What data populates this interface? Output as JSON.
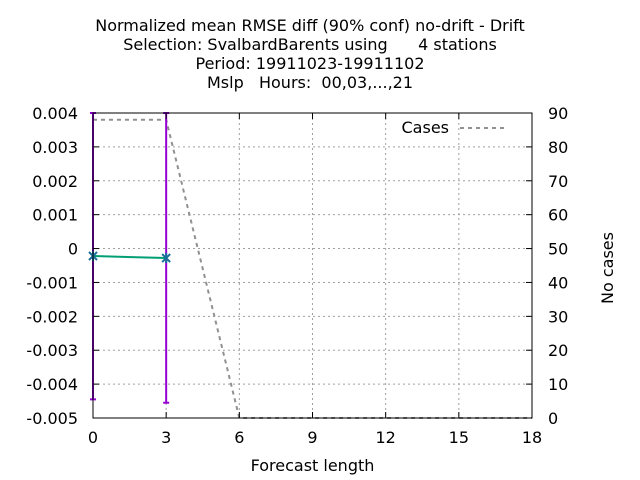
{
  "chart_data": {
    "type": "line",
    "title_lines": [
      "Normalized mean RMSE diff (90% conf) no-drift - Drift",
      "Selection: SvalbardBarents using      4 stations",
      "Period: 19911023-19911102",
      "Mslp   Hours:  00,03,...,21"
    ],
    "xlabel": "Forecast length",
    "ylabel": "",
    "y2label": "No cases",
    "xlim": [
      0,
      18
    ],
    "ylim": [
      -0.005,
      0.004
    ],
    "y2lim": [
      0,
      90
    ],
    "xticks": [
      0,
      3,
      6,
      9,
      12,
      15,
      18
    ],
    "xtick_labels": [
      "0",
      "3",
      "6",
      "9",
      "12",
      "15",
      "18"
    ],
    "yticks": [
      0.004,
      0.003,
      0.002,
      0.001,
      0,
      -0.001,
      -0.002,
      -0.003,
      -0.004,
      -0.005
    ],
    "ytick_labels": [
      "0.004",
      "0.003",
      "0.002",
      "0.001",
      "0",
      "-0.001",
      "-0.002",
      "-0.003",
      "-0.004",
      "-0.005"
    ],
    "y2ticks": [
      90,
      80,
      70,
      60,
      50,
      40,
      30,
      20,
      10,
      0
    ],
    "y2tick_labels": [
      "90",
      "80",
      "70",
      "60",
      "50",
      "40",
      "30",
      "20",
      "10",
      "0"
    ],
    "grid": true,
    "legend_position": "top-right",
    "series": [
      {
        "name": "",
        "axis": "left",
        "style": "line-with-errorbars",
        "color": "#009e73",
        "x": [
          0,
          3
        ],
        "y": [
          -0.00022,
          -0.00028
        ],
        "ci_low": [
          -0.00445,
          -0.00455
        ],
        "ci_high": [
          0.004,
          0.004
        ],
        "errorbar_color": "#9400d3"
      },
      {
        "name": "Cases",
        "axis": "right",
        "style": "dashed",
        "color": "#909090",
        "x": [
          0,
          3,
          6,
          18
        ],
        "y": [
          88,
          88,
          0,
          0
        ]
      }
    ]
  }
}
